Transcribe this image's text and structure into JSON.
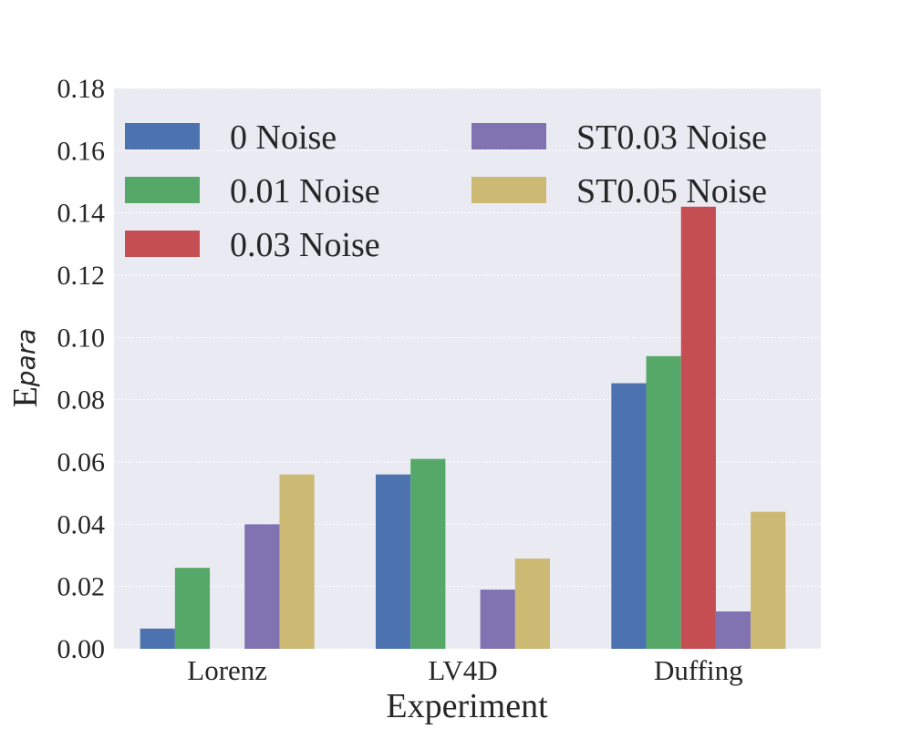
{
  "chart_data": {
    "type": "bar",
    "xlabel": "Experiment",
    "ylabel": {
      "main": "E",
      "sub": "para"
    },
    "categories": [
      "Lorenz",
      "LV4D",
      "Duffing"
    ],
    "ylim": [
      0,
      0.18
    ],
    "yticks": [
      "0.00",
      "0.02",
      "0.04",
      "0.06",
      "0.08",
      "0.10",
      "0.12",
      "0.14",
      "0.16",
      "0.18"
    ],
    "grid": true,
    "legend_position": "top",
    "series": [
      {
        "name": "0 Noise",
        "color": "#4c72b0",
        "values": [
          0.0065,
          0.056,
          0.0853
        ]
      },
      {
        "name": "0.01 Noise",
        "color": "#55a868",
        "values": [
          0.026,
          0.061,
          0.094
        ]
      },
      {
        "name": "0.03 Noise",
        "color": "#c44e52",
        "values": [
          0,
          0,
          0.142
        ]
      },
      {
        "name": "ST0.03 Noise",
        "color": "#8172b2",
        "values": [
          0.04,
          0.019,
          0.012
        ]
      },
      {
        "name": "ST0.05 Noise",
        "color": "#ccb974",
        "values": [
          0.056,
          0.029,
          0.044
        ]
      }
    ]
  }
}
